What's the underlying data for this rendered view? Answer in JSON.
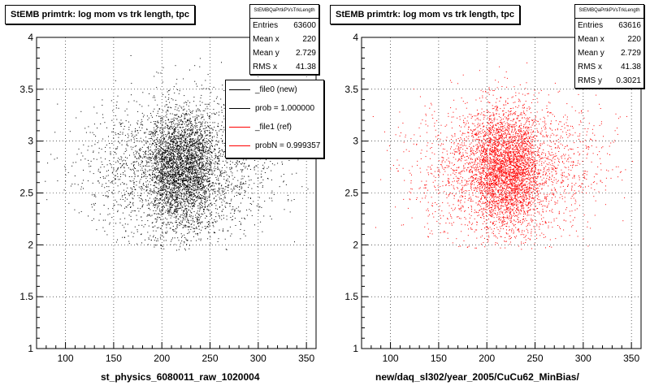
{
  "chart_data": [
    {
      "type": "scatter",
      "title": "StEMB primtrk: log mom vs trk length, tpc",
      "xlabel": "st_physics_6080011_raw_1020004",
      "ylabel": "",
      "xlim": [
        70,
        360
      ],
      "ylim": [
        1,
        4
      ],
      "x_ticks": [
        100,
        150,
        200,
        250,
        300,
        350
      ],
      "y_ticks": [
        1,
        1.5,
        2,
        2.5,
        3,
        3.5,
        4
      ],
      "grid": true,
      "marker_color": "#000000",
      "stats": {
        "name": "StEMBQaPrtkPVsTrkLength",
        "entries": "63600",
        "mean_x": "220",
        "mean_y": "2.729",
        "rms_x": "41.38"
      },
      "legend": {
        "placement": "right",
        "entries": [
          {
            "label": "_file0 (new)",
            "color": "#000000"
          },
          {
            "label": "prob = 1.000000",
            "color": "#000000"
          },
          {
            "label": "_file1 (ref)",
            "color": "#ff0000"
          },
          {
            "label": "probN = 0.999357",
            "color": "#ff0000"
          }
        ]
      }
    },
    {
      "type": "scatter",
      "title": "StEMB primtrk: log mom vs trk length, tpc",
      "xlabel": "new/daq_sl302/year_2005/CuCu62_MinBias/",
      "ylabel": "",
      "xlim": [
        70,
        360
      ],
      "ylim": [
        1,
        4
      ],
      "x_ticks": [
        100,
        150,
        200,
        250,
        300,
        350
      ],
      "y_ticks": [
        1,
        1.5,
        2,
        2.5,
        3,
        3.5,
        4
      ],
      "grid": true,
      "marker_color": "#ff0000",
      "stats": {
        "name": "StEMBQaPrtkPVsTrkLength",
        "entries": "63616",
        "mean_x": "220",
        "mean_y": "2.729",
        "rms_x": "41.38",
        "rms_y": "0.3021"
      }
    }
  ],
  "labels": {
    "entries": "Entries",
    "mean_x": "Mean x",
    "mean_y": "Mean y",
    "rms_x": "RMS x",
    "rms_y": "RMS y"
  }
}
